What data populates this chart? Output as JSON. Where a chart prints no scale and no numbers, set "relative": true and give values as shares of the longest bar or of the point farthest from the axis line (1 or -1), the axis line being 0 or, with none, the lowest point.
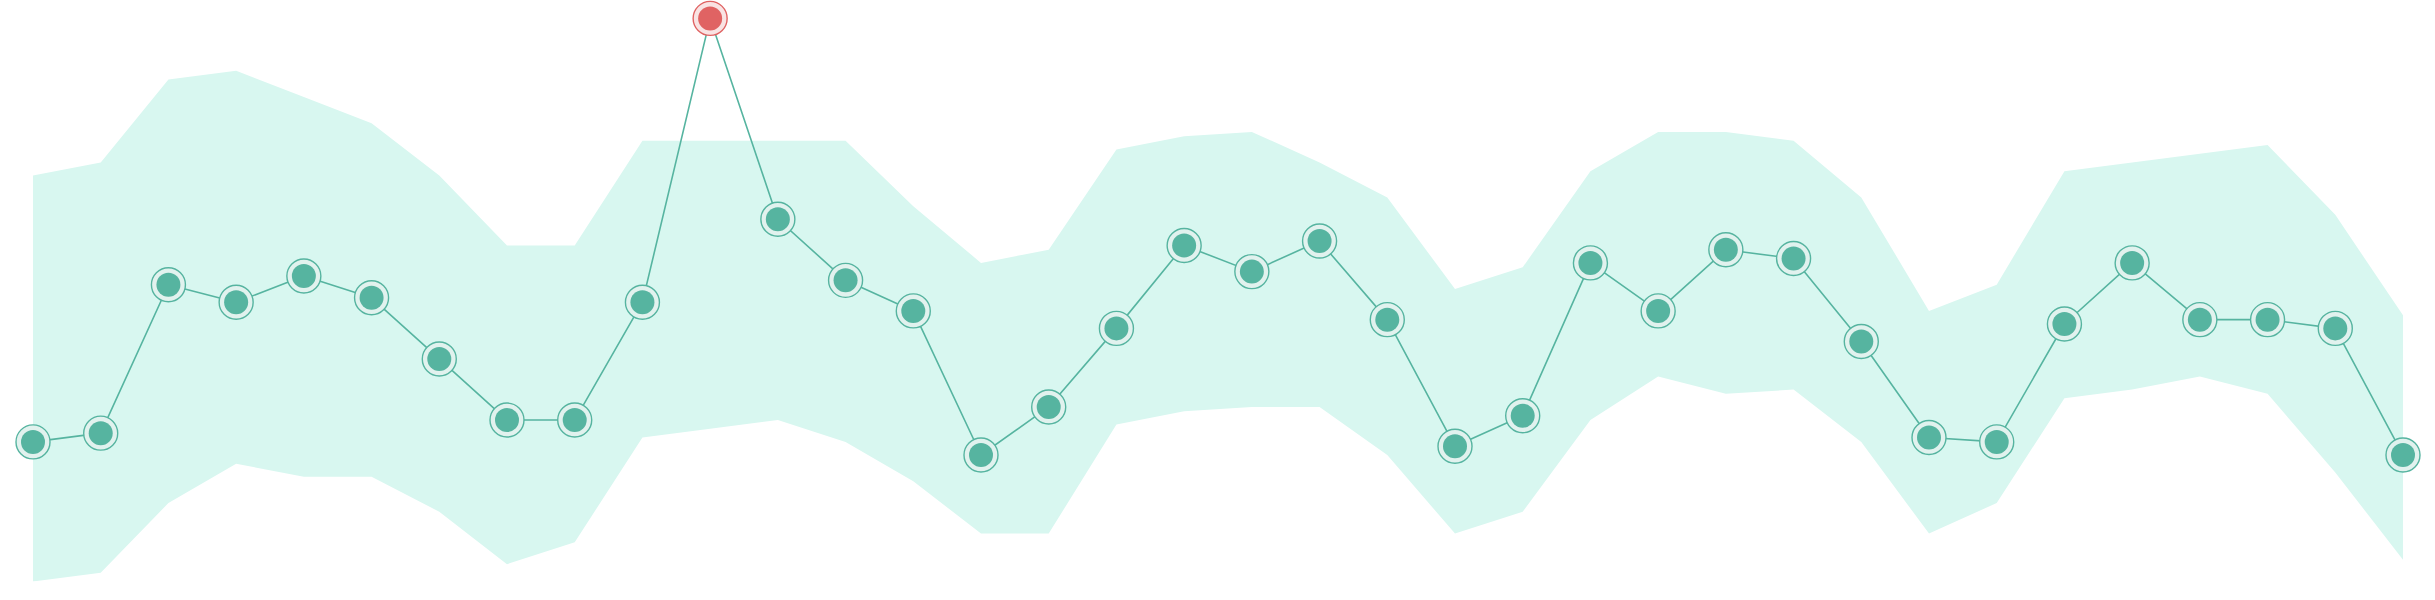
{
  "chart_data": {
    "type": "line",
    "relative": true,
    "marker": "circle",
    "line_style": "solid",
    "categories": [
      null,
      null,
      null,
      null,
      null,
      null,
      null,
      null,
      null,
      null,
      null,
      null,
      null,
      null,
      null,
      null,
      null,
      null,
      null,
      null,
      null,
      null,
      null,
      null,
      null,
      null,
      null,
      null,
      null,
      null,
      null,
      null,
      null,
      null,
      null,
      null
    ],
    "series": [
      {
        "color": "#56b4a0",
        "colors": [
          "#56b4a0",
          "#56b4a0",
          "#56b4a0",
          "#56b4a0",
          "#56b4a0",
          "#56b4a0",
          "#56b4a0",
          "#56b4a0",
          "#56b4a0",
          "#56b4a0",
          "#e06363",
          "#56b4a0",
          "#56b4a0",
          "#56b4a0",
          "#56b4a0",
          "#56b4a0",
          "#56b4a0",
          "#56b4a0",
          "#56b4a0",
          "#56b4a0",
          "#56b4a0",
          "#56b4a0",
          "#56b4a0",
          "#56b4a0",
          "#56b4a0",
          "#56b4a0",
          "#56b4a0",
          "#56b4a0",
          "#56b4a0",
          "#56b4a0",
          "#56b4a0",
          "#56b4a0",
          "#56b4a0",
          "#56b4a0",
          "#56b4a0",
          "#56b4a0"
        ],
        "values": [
          0.03,
          0.05,
          0.39,
          0.35,
          0.41,
          0.36,
          0.22,
          0.08,
          0.08,
          0.35,
          1,
          0.54,
          0.4,
          0.33,
          0,
          0.11,
          0.29,
          0.48,
          0.42,
          0.49,
          0.31,
          0.02,
          0.09,
          0.44,
          0.33,
          0.47,
          0.45,
          0.26,
          0.04,
          0.03,
          0.3,
          0.44,
          0.31,
          0.31,
          0.29,
          0
        ],
        "upper": [
          0.64,
          0.67,
          0.86,
          0.88,
          0.82,
          0.76,
          0.64,
          0.48,
          0.48,
          0.72,
          0.72,
          0.72,
          0.72,
          0.57,
          0.44,
          0.47,
          0.7,
          0.73,
          0.74,
          0.67,
          0.59,
          0.38,
          0.43,
          0.65,
          0.74,
          0.74,
          0.72,
          0.59,
          0.33,
          0.39,
          0.65,
          0.67,
          0.69,
          0.71,
          0.55,
          0.32
        ],
        "lower": [
          -0.29,
          -0.27,
          -0.11,
          -0.02,
          -0.05,
          -0.05,
          -0.13,
          -0.25,
          -0.2,
          0.04,
          0.06,
          0.08,
          0.03,
          -0.06,
          -0.18,
          -0.18,
          0.07,
          0.1,
          0.11,
          0.11,
          0,
          -0.18,
          -0.13,
          0.08,
          0.18,
          0.14,
          0.15,
          0.03,
          -0.18,
          -0.11,
          0.13,
          0.15,
          0.18,
          0.14,
          -0.04,
          -0.24
        ]
      }
    ]
  }
}
